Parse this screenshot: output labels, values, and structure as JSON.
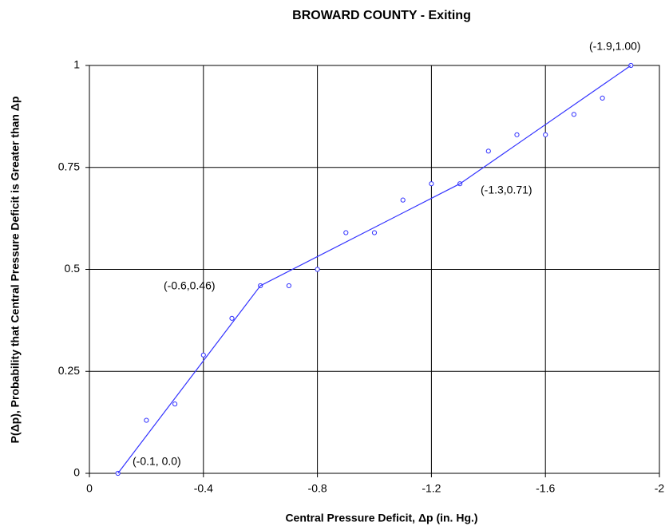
{
  "chart_data": {
    "type": "scatter",
    "title": "BROWARD COUNTY - Exiting",
    "x_label": "Central Pressure Deficit, Δp (in. Hg.)",
    "y_label": "P(Δp), Probability that Central Pressure Deficit is Greater than Δp",
    "xlim": [
      0,
      -2
    ],
    "xticks": [
      0,
      -0.4,
      -0.8,
      -1.2,
      -1.6,
      -2
    ],
    "ylim": [
      0,
      1
    ],
    "yticks": [
      0,
      0.25,
      0.5,
      0.75,
      1
    ],
    "grid": true,
    "series": [
      {
        "mode": "markers",
        "color": "#3333ff",
        "x": [
          -0.1,
          -0.2,
          -0.3,
          -0.4,
          -0.5,
          -0.6,
          -0.7,
          -0.8,
          -0.9,
          -1.0,
          -1.1,
          -1.2,
          -1.3,
          -1.4,
          -1.5,
          -1.6,
          -1.7,
          -1.8,
          -1.9
        ],
        "values": [
          0.0,
          0.13,
          0.17,
          0.29,
          0.38,
          0.46,
          0.46,
          0.5,
          0.59,
          0.59,
          0.67,
          0.71,
          0.71,
          0.79,
          0.83,
          0.83,
          0.88,
          0.92,
          1.0
        ]
      },
      {
        "mode": "lines",
        "color": "#3333ff",
        "x": [
          -0.1,
          -0.6,
          -1.3,
          -1.9
        ],
        "values": [
          0.0,
          0.46,
          0.71,
          1.0
        ]
      }
    ],
    "annotations": [
      "(-0.1, 0.0)",
      "(-0.6,0.46)",
      "(-1.3,0.71)",
      "(-1.9,1.00)"
    ]
  }
}
